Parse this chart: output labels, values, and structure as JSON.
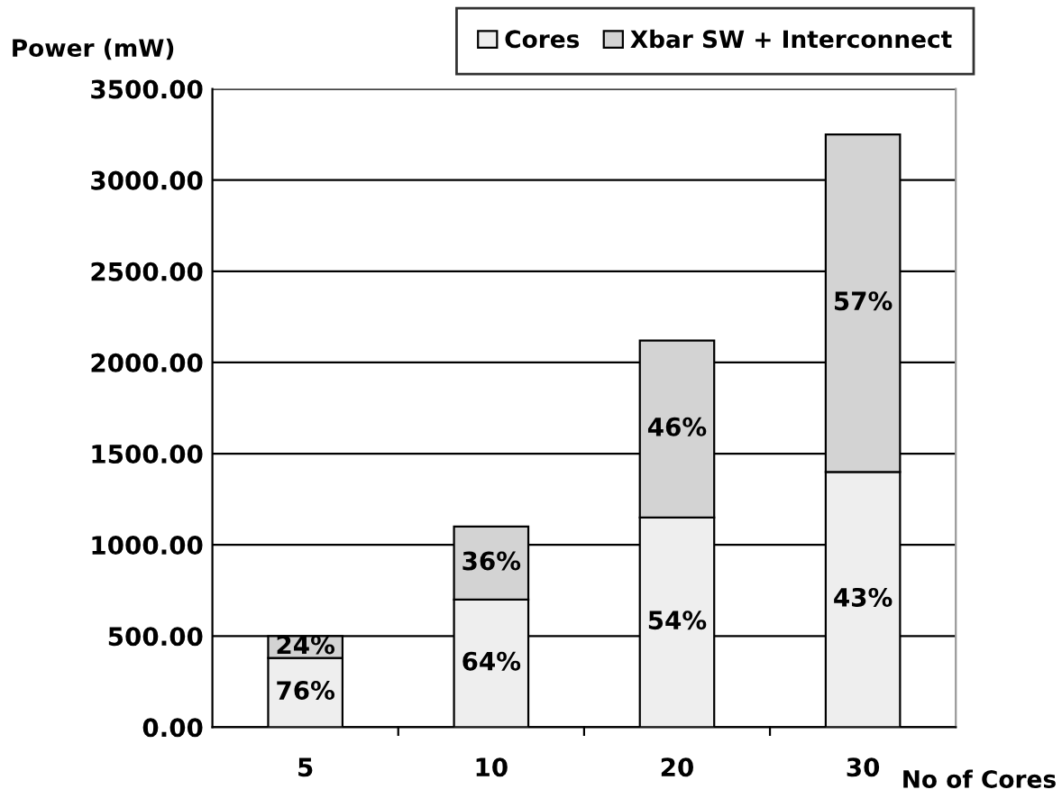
{
  "chart_data": {
    "type": "bar",
    "stacked": true,
    "xlabel": "No of Cores",
    "ylabel": "Power (mW)",
    "categories": [
      "5",
      "10",
      "20",
      "30"
    ],
    "series": [
      {
        "name": "Cores",
        "color": "#eeeeee",
        "values": [
          380,
          700,
          1150,
          1400
        ]
      },
      {
        "name": "Xbar SW + Interconnect",
        "color": "#d3d3d3",
        "values": [
          120,
          400,
          970,
          1850
        ]
      }
    ],
    "annotations": [
      "76%",
      "64%",
      "54%",
      "43%",
      "24%",
      "36%",
      "46%",
      "57%"
    ],
    "ylim": [
      0,
      3500
    ],
    "yticks": [
      {
        "value": 0,
        "label": "0.00"
      },
      {
        "value": 500,
        "label": "500.00"
      },
      {
        "value": 1000,
        "label": "1000.00"
      },
      {
        "value": 1500,
        "label": "1500.00"
      },
      {
        "value": 2000,
        "label": "2000.00"
      },
      {
        "value": 2500,
        "label": "2500.00"
      },
      {
        "value": 3000,
        "label": "3000.00"
      },
      {
        "value": 3500,
        "label": "3500.00"
      }
    ],
    "grid": "y",
    "legend": "top right"
  }
}
